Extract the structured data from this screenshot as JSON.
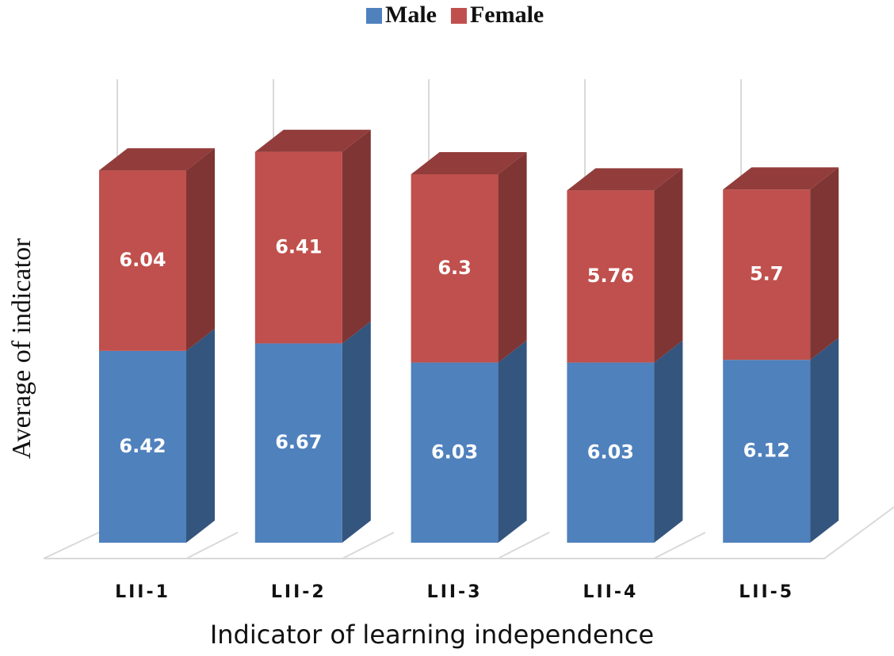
{
  "chart_data": {
    "type": "bar3d_stacked",
    "x_label": "Indicator of learning independence",
    "y_label": "Average of indicator",
    "categories": [
      "LII-1",
      "LII-2",
      "LII-3",
      "LII-4",
      "LII-5"
    ],
    "series": [
      {
        "name": "Male",
        "color": "#4f81bd",
        "values": [
          6.42,
          6.67,
          6.03,
          6.03,
          6.12
        ]
      },
      {
        "name": "Female",
        "color": "#c0504d",
        "values": [
          6.04,
          6.41,
          6.3,
          5.76,
          5.7
        ]
      }
    ],
    "ylim": [
      0,
      14
    ],
    "legend": "top"
  }
}
